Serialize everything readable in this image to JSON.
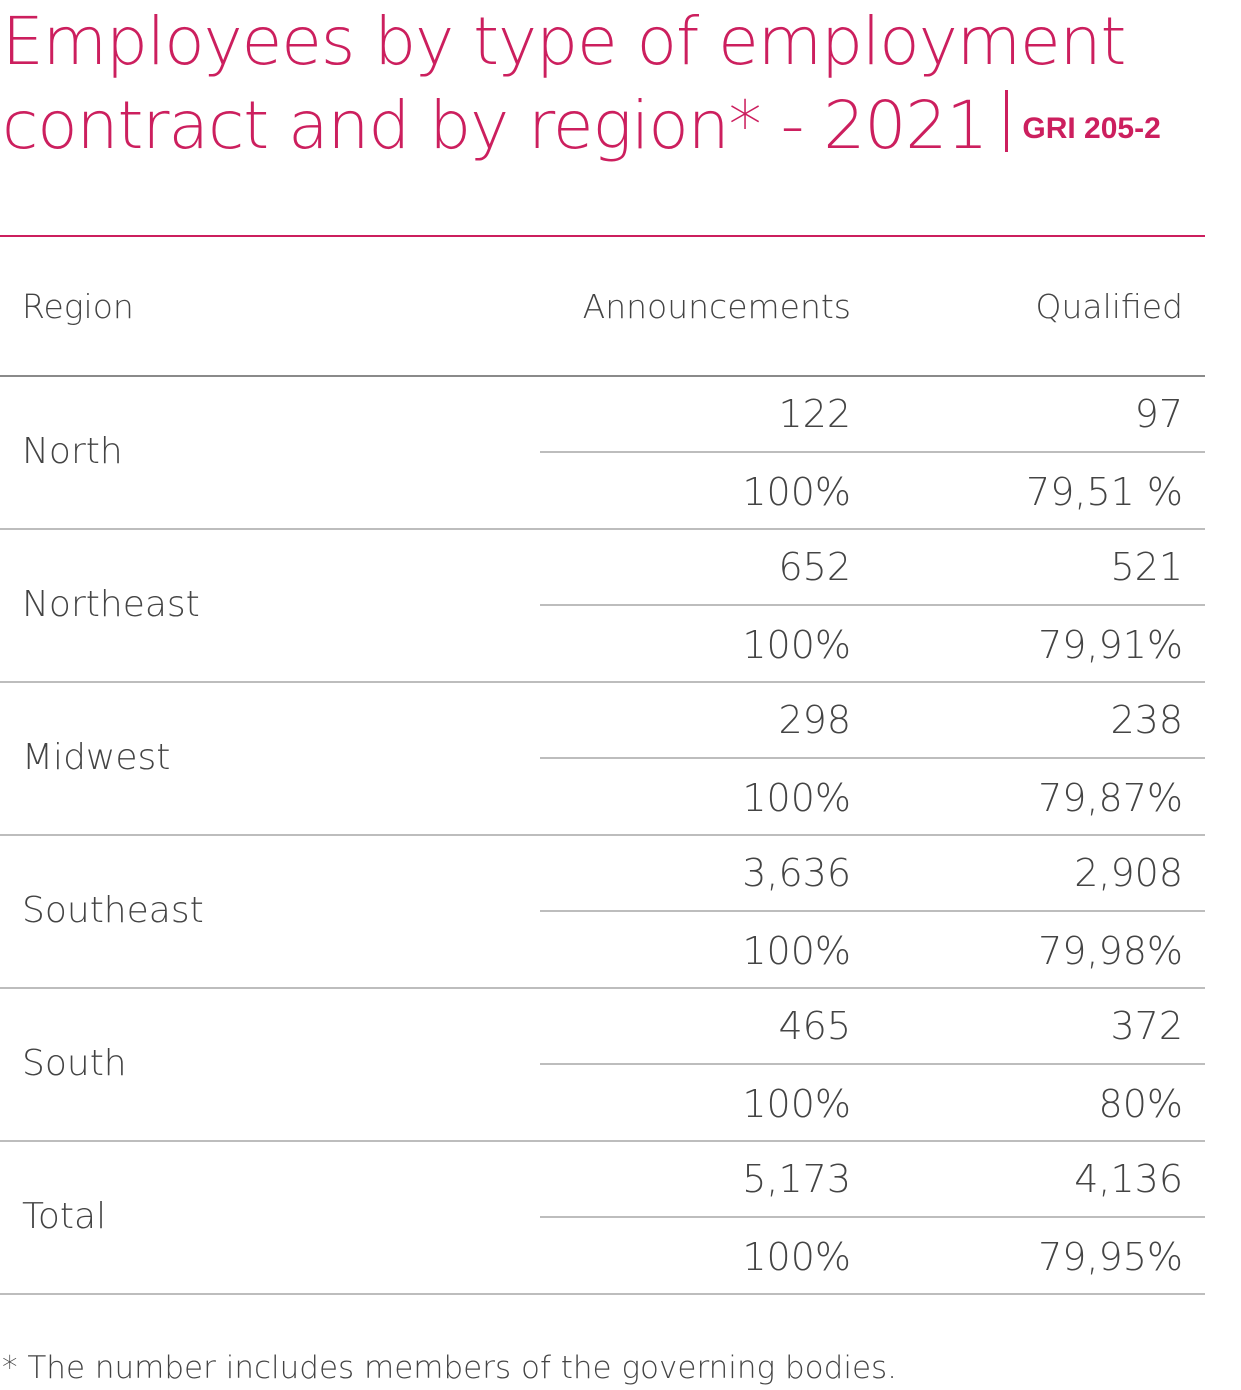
{
  "title": {
    "text": "Employees by type of employment contract and by region* - 2021",
    "reference": "GRI 205-2",
    "color": "#cc1f5e"
  },
  "table": {
    "headers": {
      "region": "Region",
      "announcements": "Announcements",
      "qualified": "Qualified"
    },
    "rows": [
      {
        "region": "North",
        "announcements_count": "122",
        "qualified_count": "97",
        "announcements_pct": "100%",
        "qualified_pct": "79,51 %"
      },
      {
        "region": "Northeast",
        "announcements_count": "652",
        "qualified_count": "521",
        "announcements_pct": "100%",
        "qualified_pct": "79,91%"
      },
      {
        "region": "Midwest",
        "announcements_count": "298",
        "qualified_count": "238",
        "announcements_pct": "100%",
        "qualified_pct": "79,87%"
      },
      {
        "region": "Southeast",
        "announcements_count": "3,636",
        "qualified_count": "2,908",
        "announcements_pct": "100%",
        "qualified_pct": "79,98%"
      },
      {
        "region": "South",
        "announcements_count": "465",
        "qualified_count": "372",
        "announcements_pct": "100%",
        "qualified_pct": "80%"
      },
      {
        "region": "Total",
        "announcements_count": "5,173",
        "qualified_count": "4,136",
        "announcements_pct": "100%",
        "qualified_pct": "79,95%"
      }
    ]
  },
  "footnote": "* The number includes members of the governing bodies."
}
